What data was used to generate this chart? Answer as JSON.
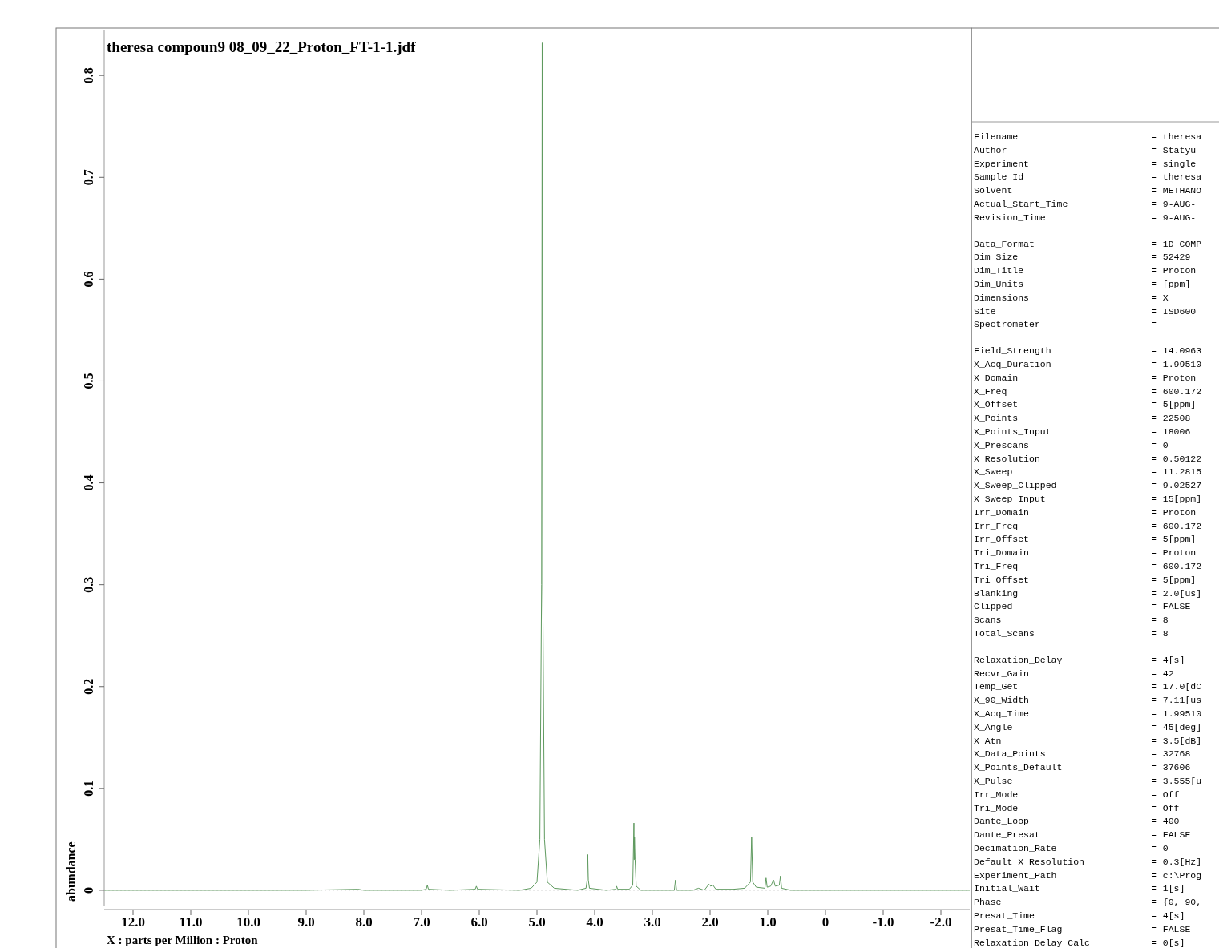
{
  "chart_data": [
    {
      "type": "line",
      "title": "theresa compoun9 08_09_22_Proton_FT-1-1.jdf",
      "xlabel": "X : parts per Million : Proton",
      "ylabel": "abundance",
      "xlim": [
        12.5,
        -2.5
      ],
      "ylim": [
        -0.015,
        0.845
      ],
      "xticks": [
        {
          "value": 12,
          "label": "12.0"
        },
        {
          "value": 11,
          "label": "11.0"
        },
        {
          "value": 10,
          "label": "10.0"
        },
        {
          "value": 9,
          "label": "9.0"
        },
        {
          "value": 8,
          "label": "8.0"
        },
        {
          "value": 7,
          "label": "7.0"
        },
        {
          "value": 6,
          "label": "6.0"
        },
        {
          "value": 5,
          "label": "5.0"
        },
        {
          "value": 4,
          "label": "4.0"
        },
        {
          "value": 3,
          "label": "3.0"
        },
        {
          "value": 2,
          "label": "2.0"
        },
        {
          "value": 1,
          "label": "1.0"
        },
        0,
        {
          "value": -1,
          "label": "-1.0"
        },
        {
          "value": -2,
          "label": "-2.0"
        }
      ],
      "yticks": [
        0,
        0.1,
        0.2,
        0.3,
        0.4,
        0.5,
        0.6,
        0.7,
        0.8
      ],
      "series": [
        {
          "color": "#5f9a5f",
          "x": [
            12.5,
            9.0,
            8.1,
            8.0,
            7.0,
            6.92,
            6.9,
            6.88,
            6.5,
            6.07,
            6.05,
            6.03,
            5.3,
            5.1,
            5.0,
            4.95,
            4.92,
            4.91,
            4.9,
            4.87,
            4.82,
            4.7,
            4.3,
            4.15,
            4.13,
            4.12,
            4.11,
            4.09,
            3.8,
            3.63,
            3.62,
            3.6,
            3.4,
            3.34,
            3.32,
            3.315,
            3.31,
            3.3,
            3.28,
            3.2,
            2.62,
            2.6,
            2.58,
            2.3,
            2.2,
            2.1,
            2.02,
            1.99,
            1.95,
            1.9,
            1.6,
            1.4,
            1.3,
            1.28,
            1.26,
            1.2,
            1.05,
            1.03,
            1.01,
            0.95,
            0.9,
            0.87,
            0.8,
            0.78,
            0.76,
            0.6,
            0.3,
            0,
            -2.5
          ],
          "values": [
            0,
            0,
            0.001,
            0,
            0,
            0.001,
            0.005,
            0.001,
            0,
            0.001,
            0.004,
            0.001,
            0,
            0.002,
            0.008,
            0.05,
            0.3,
            0.832,
            0.3,
            0.05,
            0.008,
            0.002,
            0,
            0.002,
            0.01,
            0.035,
            0.01,
            0.002,
            0,
            0.001,
            0.004,
            0.001,
            0.001,
            0.005,
            0.066,
            0.03,
            0.052,
            0.03,
            0.004,
            0,
            0,
            0.01,
            0,
            0,
            0.002,
            0,
            0.006,
            0.004,
            0.005,
            0.001,
            0.001,
            0.002,
            0.008,
            0.052,
            0.008,
            0.003,
            0.002,
            0.012,
            0.003,
            0.004,
            0.01,
            0.004,
            0.005,
            0.014,
            0.002,
            0,
            0,
            0,
            0
          ]
        }
      ]
    },
    {
      "type": "other",
      "annotations": [
        "Filename",
        "= theresa",
        "Author",
        "= Statyu",
        "Experiment",
        "= single_",
        "Sample_Id",
        "= theresa",
        "Solvent",
        "= METHANO",
        "Actual_Start_Time",
        "=  9-AUG-",
        "Revision_Time",
        "=  9-AUG-",
        "Data_Format",
        "= 1D COMP",
        "Dim_Size",
        "= 52429",
        "Dim_Title",
        "= Proton",
        "Dim_Units",
        "= [ppm]",
        "Dimensions",
        "= X",
        "Site",
        "= ISD600",
        "Spectrometer",
        "=",
        "Field_Strength",
        "= 14.0963",
        "X_Acq_Duration",
        "= 1.99510",
        "X_Domain",
        "= Proton",
        "X_Freq",
        "= 600.172",
        "X_Offset",
        "= 5[ppm]",
        "X_Points",
        "= 22508",
        "X_Points_Input",
        "= 18006",
        "X_Prescans",
        "= 0",
        "X_Resolution",
        "= 0.50122",
        "X_Sweep",
        "= 11.2815",
        "X_Sweep_Clipped",
        "= 9.02527",
        "X_Sweep_Input",
        "= 15[ppm]",
        "Irr_Domain",
        "= Proton",
        "Irr_Freq",
        "= 600.172",
        "Irr_Offset",
        "= 5[ppm]",
        "Tri_Domain",
        "= Proton",
        "Tri_Freq",
        "= 600.172",
        "Tri_Offset",
        "= 5[ppm]",
        "Blanking",
        "= 2.0[us]",
        "Clipped",
        "= FALSE",
        "Scans",
        "= 8",
        "Total_Scans",
        "= 8",
        "Relaxation_Delay",
        "= 4[s]",
        "Recvr_Gain",
        "= 42",
        "Temp_Get",
        "= 17.0[dC",
        "X_90_Width",
        "= 7.11[us",
        "X_Acq_Time",
        "= 1.99510",
        "X_Angle",
        "= 45[deg]",
        "X_Atn",
        "= 3.5[dB]",
        "X_Data_Points",
        "= 32768",
        "X_Points_Default",
        "= 37606",
        "X_Pulse",
        "= 3.555[u",
        "Irr_Mode",
        "= Off",
        "Tri_Mode",
        "= Off",
        "Dante_Loop",
        "= 400",
        "Dante_Presat",
        "= FALSE",
        "Decimation_Rate",
        "= 0",
        "Default_X_Resolution",
        "= 0.3[Hz]",
        "Experiment_Path",
        "= c:\\Prog",
        "Initial_Wait",
        "= 1[s]",
        "Phase",
        "= {0, 90,",
        "Presat_Time",
        "= 4[s]",
        "Presat_Time_Flag",
        "= FALSE",
        "Relaxation_Delay_Calc",
        "= 0[s]"
      ]
    }
  ]
}
